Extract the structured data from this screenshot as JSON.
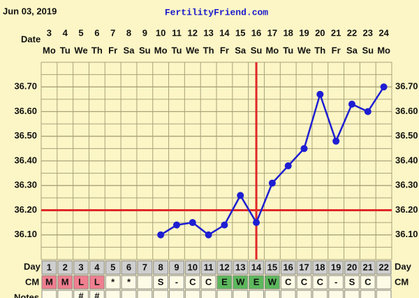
{
  "header": {
    "date": "Jun 03, 2019",
    "site": "FertilityFriend.com"
  },
  "chart_data": {
    "type": "line",
    "row_labels": {
      "date": "Date",
      "day": "Day",
      "cm": "CM",
      "notes": "Notes"
    },
    "categories": [
      1,
      2,
      3,
      4,
      5,
      6,
      7,
      8,
      9,
      10,
      11,
      12,
      13,
      14,
      15,
      16,
      17,
      18,
      19,
      20,
      21,
      22
    ],
    "dates": [
      3,
      4,
      5,
      6,
      7,
      8,
      9,
      10,
      11,
      12,
      13,
      14,
      15,
      16,
      17,
      18,
      19,
      20,
      21,
      22,
      23,
      24
    ],
    "weekdays": [
      "Mo",
      "Tu",
      "We",
      "Th",
      "Fr",
      "Sa",
      "Su",
      "Mo",
      "Tu",
      "We",
      "Th",
      "Fr",
      "Sa",
      "Su",
      "Mo",
      "Tu",
      "We",
      "Th",
      "Fr",
      "Sa",
      "Su",
      "Mo"
    ],
    "cm": [
      "M",
      "M",
      "L",
      "L",
      "*",
      "*",
      null,
      "S",
      "-",
      "C",
      "C",
      "E",
      "W",
      "E",
      "W",
      "C",
      "C",
      "C",
      "-",
      "S",
      "C",
      null
    ],
    "cm_colors": {
      "M": "#ef7f8f",
      "L": "#ef7f8f",
      "E": "#5cb85c",
      "W": "#5cb85c"
    },
    "notes": [
      null,
      null,
      "#",
      "#",
      null,
      null,
      null,
      null,
      null,
      null,
      null,
      null,
      null,
      null,
      null,
      null,
      null,
      null,
      null,
      null,
      null,
      null
    ],
    "series": [
      {
        "color": "#1e1ed2",
        "values": [
          null,
          null,
          null,
          null,
          null,
          null,
          null,
          36.1,
          36.14,
          36.15,
          36.1,
          36.14,
          36.26,
          36.15,
          36.31,
          36.38,
          36.45,
          36.67,
          36.48,
          36.63,
          36.6,
          36.7
        ]
      }
    ],
    "ylim": [
      36.0,
      36.8
    ],
    "yticks": [
      {
        "value": 36.1,
        "label": "36.10"
      },
      {
        "value": 36.2,
        "label": "36.20"
      },
      {
        "value": 36.3,
        "label": "36.30"
      },
      {
        "value": 36.4,
        "label": "36.40"
      },
      {
        "value": 36.5,
        "label": "36.50"
      },
      {
        "value": 36.6,
        "label": "36.60"
      },
      {
        "value": 36.7,
        "label": "36.70"
      }
    ],
    "coverline": 36.2,
    "ovulation_day": 14,
    "marker_color": "#e02828"
  }
}
